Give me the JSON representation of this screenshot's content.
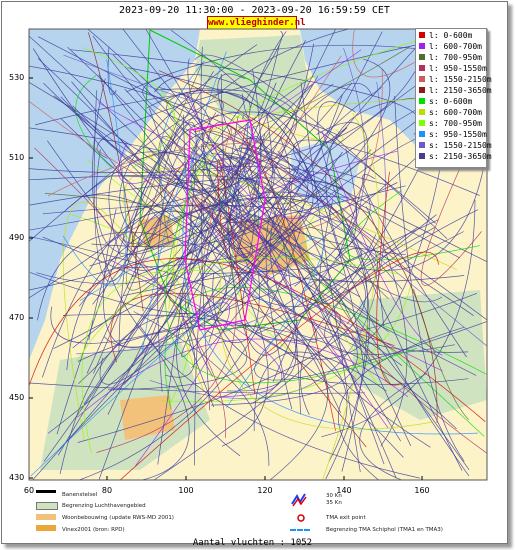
{
  "header": {
    "time_range": "2023-09-20 11:30:00 - 2023-09-20 16:59:59 CET",
    "site_badge": "www.vlieghinder.nl"
  },
  "axes": {
    "y_ticks": [
      "530",
      "510",
      "490",
      "470",
      "450",
      "430"
    ],
    "x_ticks": [
      "80",
      "100",
      "120",
      "140",
      "160"
    ],
    "x_corner": "60"
  },
  "legend": {
    "items": [
      {
        "label": "l: 0-600m",
        "color": "#d40000"
      },
      {
        "label": "l: 600-700m",
        "color": "#a020f0"
      },
      {
        "label": "l: 700-950m",
        "color": "#556b2f"
      },
      {
        "label": "l: 950-1550m",
        "color": "#b03060"
      },
      {
        "label": "l: 1550-2150m",
        "color": "#cd5c5c"
      },
      {
        "label": "l: 2150-3650m",
        "color": "#8b1a1a"
      },
      {
        "label": "s: 0-600m",
        "color": "#00dd00"
      },
      {
        "label": "s: 600-700m",
        "color": "#b8e000"
      },
      {
        "label": "s: 700-950m",
        "color": "#7fff00"
      },
      {
        "label": "s: 950-1550m",
        "color": "#1e90ff"
      },
      {
        "label": "s: 1550-2150m",
        "color": "#6a5acd"
      },
      {
        "label": "s: 2150-3650m",
        "color": "#483d8b"
      }
    ]
  },
  "footer": {
    "baan": "Banenstelsel",
    "begrenzing": "Begrenzing Luchthavengebied",
    "woonbebouwing": "Woonbebouwing (update RWS-MD 2001)",
    "vinex": "Vinex2001 (bron: RPD)",
    "wind_30": "30 Kn",
    "wind_35": "35 Kn",
    "tma_exit": "TMA exit point",
    "tma_border": "Begrenzing TMA Schiphol  (TMA1 en TMA3)",
    "flight_count": "Aantal vluchten : 1052"
  },
  "colors": {
    "sea": "#b7d4ef",
    "land": "#fdf3c9",
    "land_green": "#cfe3c1",
    "urban": "#f3c27a",
    "track_dominant": "#3a3a9a"
  }
}
